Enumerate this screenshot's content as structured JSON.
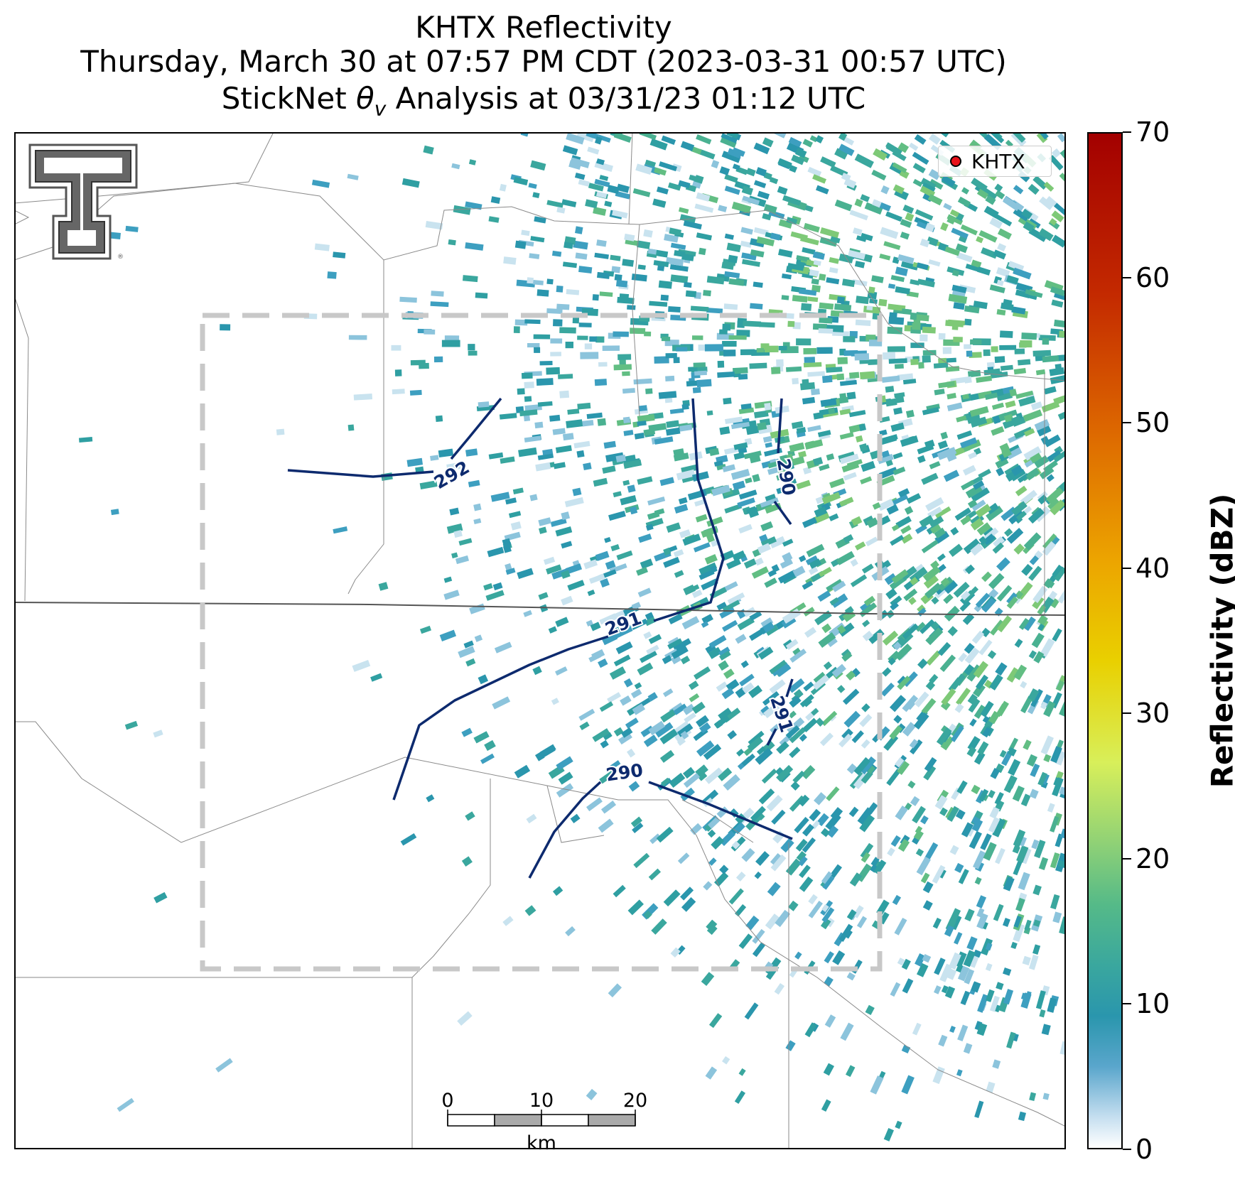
{
  "title": {
    "line1": "KHTX Reflectivity",
    "line2": "Thursday, March 30 at 07:57 PM CDT (2023-03-31 00:57 UTC)",
    "line3_prefix": "StickNet ",
    "line3_symbol": "θ",
    "line3_subscript": "v",
    "line3_suffix": " Analysis at 03/31/23 01:12 UTC"
  },
  "legend": {
    "label": "KHTX",
    "marker_color": "#e8131b"
  },
  "colorbar": {
    "label": "Reflectivity (dBZ)",
    "ticks": [
      "0",
      "10",
      "20",
      "30",
      "40",
      "50",
      "60",
      "70"
    ],
    "range": [
      0,
      70
    ]
  },
  "scale_bar": {
    "labels": [
      "0",
      "10",
      "20"
    ],
    "unit": "km"
  },
  "contours": [
    {
      "label": "292"
    },
    {
      "label": "290"
    },
    {
      "label": "291"
    },
    {
      "label": "291"
    },
    {
      "label": "290"
    }
  ],
  "logo": {
    "icon": "texas-tech-double-t-logo",
    "mark": "®"
  },
  "colors": {
    "contour": "#0d2a6e",
    "county_line": "#8a8a8a",
    "analysis_box": "#c8c8c8"
  }
}
